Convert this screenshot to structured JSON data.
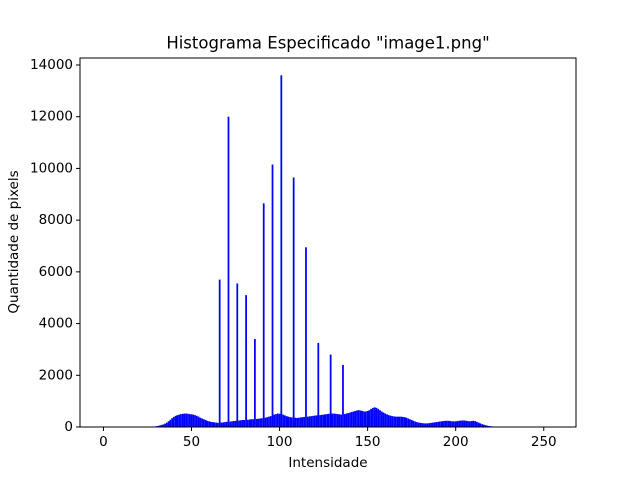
{
  "chart_data": {
    "type": "bar",
    "title": "Histograma Especificado \"image1.png\"",
    "xlabel": "Intensidade",
    "ylabel": "Quantidade de pixels",
    "color": "#0000ff",
    "xlim": [
      -13.3,
      268.3
    ],
    "xticks": [
      0,
      50,
      100,
      150,
      200,
      250
    ],
    "ylim": [
      0,
      14270
    ],
    "yticks": [
      0,
      2000,
      4000,
      6000,
      8000,
      10000,
      12000,
      14000
    ],
    "x": [
      0,
      1,
      2,
      3,
      4,
      5,
      6,
      7,
      8,
      9,
      10,
      11,
      12,
      13,
      14,
      15,
      16,
      17,
      18,
      19,
      20,
      21,
      22,
      23,
      24,
      25,
      26,
      27,
      28,
      29,
      30,
      31,
      32,
      33,
      34,
      35,
      36,
      37,
      38,
      39,
      40,
      41,
      42,
      43,
      44,
      45,
      46,
      47,
      48,
      49,
      50,
      51,
      52,
      53,
      54,
      55,
      56,
      57,
      58,
      59,
      60,
      61,
      62,
      63,
      64,
      65,
      66,
      67,
      68,
      69,
      70,
      71,
      72,
      73,
      74,
      75,
      76,
      77,
      78,
      79,
      80,
      81,
      82,
      83,
      84,
      85,
      86,
      87,
      88,
      89,
      90,
      91,
      92,
      93,
      94,
      95,
      96,
      97,
      98,
      99,
      100,
      101,
      102,
      103,
      104,
      105,
      106,
      107,
      108,
      109,
      110,
      111,
      112,
      113,
      114,
      115,
      116,
      117,
      118,
      119,
      120,
      121,
      122,
      123,
      124,
      125,
      126,
      127,
      128,
      129,
      130,
      131,
      132,
      133,
      134,
      135,
      136,
      137,
      138,
      139,
      140,
      141,
      142,
      143,
      144,
      145,
      146,
      147,
      148,
      149,
      150,
      151,
      152,
      153,
      154,
      155,
      156,
      157,
      158,
      159,
      160,
      161,
      162,
      163,
      164,
      165,
      166,
      167,
      168,
      169,
      170,
      171,
      172,
      173,
      174,
      175,
      176,
      177,
      178,
      179,
      180,
      181,
      182,
      183,
      184,
      185,
      186,
      187,
      188,
      189,
      190,
      191,
      192,
      193,
      194,
      195,
      196,
      197,
      198,
      199,
      200,
      201,
      202,
      203,
      204,
      205,
      206,
      207,
      208,
      209,
      210,
      211,
      212,
      213,
      214,
      215,
      216,
      217,
      218,
      219,
      220,
      221,
      222,
      223,
      224,
      225,
      226,
      227,
      228,
      229,
      230,
      231,
      232,
      233,
      234,
      235,
      236,
      237,
      238,
      239,
      240,
      241,
      242,
      243,
      244,
      245,
      246,
      247,
      248,
      249,
      250,
      251,
      252,
      253,
      254,
      255
    ],
    "values": [
      0,
      0,
      0,
      0,
      0,
      0,
      0,
      0,
      0,
      0,
      0,
      0,
      0,
      0,
      0,
      0,
      0,
      0,
      0,
      0,
      0,
      0,
      0,
      0,
      0,
      0,
      0,
      0,
      10,
      20,
      30,
      40,
      60,
      80,
      100,
      130,
      170,
      220,
      280,
      340,
      390,
      430,
      460,
      480,
      500,
      510,
      520,
      520,
      510,
      500,
      490,
      480,
      460,
      430,
      400,
      360,
      330,
      300,
      270,
      240,
      220,
      200,
      190,
      180,
      170,
      160,
      5700,
      170,
      180,
      190,
      200,
      12000,
      210,
      220,
      230,
      240,
      5550,
      250,
      260,
      270,
      270,
      5100,
      280,
      290,
      300,
      300,
      3400,
      310,
      320,
      330,
      340,
      8650,
      360,
      380,
      400,
      420,
      10150,
      480,
      500,
      520,
      510,
      13600,
      480,
      450,
      420,
      400,
      380,
      370,
      9650,
      360,
      350,
      360,
      370,
      380,
      390,
      6950,
      400,
      410,
      420,
      430,
      440,
      450,
      3250,
      460,
      470,
      480,
      490,
      500,
      510,
      2800,
      520,
      520,
      510,
      500,
      490,
      480,
      2400,
      500,
      520,
      540,
      560,
      580,
      600,
      620,
      640,
      650,
      640,
      620,
      600,
      600,
      620,
      650,
      700,
      740,
      760,
      740,
      700,
      650,
      600,
      560,
      520,
      490,
      460,
      440,
      420,
      410,
      400,
      400,
      400,
      400,
      390,
      380,
      360,
      330,
      300,
      270,
      240,
      210,
      190,
      170,
      160,
      150,
      140,
      140,
      140,
      150,
      160,
      170,
      180,
      190,
      200,
      210,
      220,
      230,
      240,
      240,
      240,
      230,
      220,
      220,
      220,
      230,
      240,
      250,
      250,
      250,
      240,
      230,
      220,
      230,
      240,
      230,
      200,
      170,
      140,
      110,
      90,
      70,
      50,
      40,
      30,
      20,
      10,
      5,
      0,
      0,
      0,
      0,
      0,
      0,
      0,
      0,
      0,
      0,
      0,
      0,
      0,
      0,
      0,
      0,
      0,
      0,
      0,
      0,
      0,
      0,
      0,
      0,
      0,
      0,
      0,
      0,
      0,
      0,
      0,
      0
    ]
  }
}
